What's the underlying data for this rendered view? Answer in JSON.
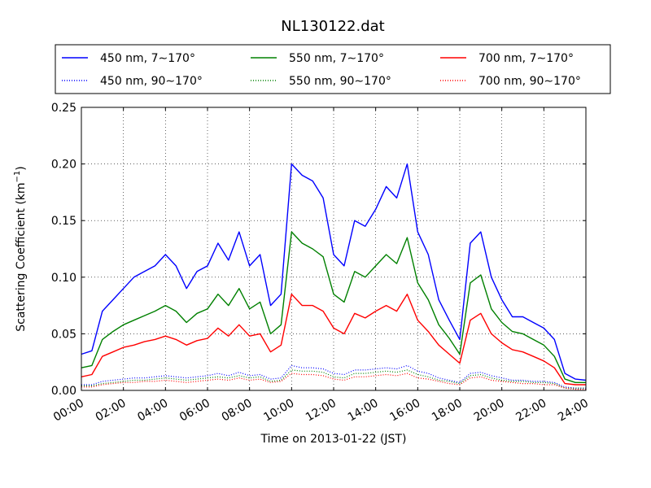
{
  "chart_data": {
    "type": "line",
    "title": "NL130122.dat",
    "xlabel": "Time on 2013-01-22 (JST)",
    "ylabel": "Scattering Coefficient (km",
    "ylabel_sup": "−1",
    "ylabel_close": ")",
    "xlim": [
      "00:00",
      "24:00"
    ],
    "ylim": [
      0,
      0.25
    ],
    "grid": true,
    "legend_position": "top",
    "x_ticks": [
      "00:00",
      "02:00",
      "04:00",
      "06:00",
      "08:00",
      "10:00",
      "12:00",
      "14:00",
      "16:00",
      "18:00",
      "20:00",
      "22:00",
      "24:00"
    ],
    "y_ticks": [
      "0.00",
      "0.05",
      "0.10",
      "0.15",
      "0.20",
      "0.25"
    ],
    "x_hours": [
      0,
      0.5,
      1,
      1.5,
      2,
      2.5,
      3,
      3.5,
      4,
      4.5,
      5,
      5.5,
      6,
      6.5,
      7,
      7.5,
      8,
      8.5,
      9,
      9.5,
      10,
      10.5,
      11,
      11.5,
      12,
      12.5,
      13,
      13.5,
      14,
      14.5,
      15,
      15.5,
      16,
      16.5,
      17,
      17.5,
      18,
      18.5,
      19,
      19.5,
      20,
      20.5,
      21,
      21.5,
      22,
      22.5,
      23,
      23.5,
      24
    ],
    "series": [
      {
        "name": "450 nm, 7∼170°",
        "color": "#0000ff",
        "style": "solid",
        "values": [
          0.032,
          0.035,
          0.07,
          0.08,
          0.09,
          0.1,
          0.105,
          0.11,
          0.12,
          0.11,
          0.09,
          0.105,
          0.11,
          0.13,
          0.115,
          0.14,
          0.11,
          0.12,
          0.075,
          0.085,
          0.2,
          0.19,
          0.185,
          0.17,
          0.12,
          0.11,
          0.15,
          0.145,
          0.16,
          0.18,
          0.17,
          0.2,
          0.14,
          0.12,
          0.08,
          0.062,
          0.045,
          0.13,
          0.14,
          0.1,
          0.08,
          0.065,
          0.065,
          0.06,
          0.055,
          0.045,
          0.015,
          0.01,
          0.009
        ]
      },
      {
        "name": "550 nm, 7∼170°",
        "color": "#008000",
        "style": "solid",
        "values": [
          0.02,
          0.022,
          0.045,
          0.052,
          0.058,
          0.062,
          0.066,
          0.07,
          0.075,
          0.07,
          0.06,
          0.068,
          0.072,
          0.085,
          0.075,
          0.09,
          0.072,
          0.078,
          0.05,
          0.058,
          0.14,
          0.13,
          0.125,
          0.118,
          0.085,
          0.078,
          0.105,
          0.1,
          0.11,
          0.12,
          0.112,
          0.135,
          0.095,
          0.08,
          0.058,
          0.046,
          0.032,
          0.095,
          0.102,
          0.072,
          0.06,
          0.052,
          0.05,
          0.045,
          0.04,
          0.03,
          0.01,
          0.007,
          0.007
        ]
      },
      {
        "name": "700 nm, 7∼170°",
        "color": "#ff0000",
        "style": "solid",
        "values": [
          0.012,
          0.014,
          0.03,
          0.034,
          0.038,
          0.04,
          0.043,
          0.045,
          0.048,
          0.045,
          0.04,
          0.044,
          0.046,
          0.055,
          0.048,
          0.058,
          0.048,
          0.05,
          0.034,
          0.04,
          0.085,
          0.075,
          0.075,
          0.07,
          0.055,
          0.05,
          0.068,
          0.064,
          0.07,
          0.075,
          0.07,
          0.085,
          0.062,
          0.052,
          0.04,
          0.032,
          0.024,
          0.062,
          0.068,
          0.05,
          0.042,
          0.036,
          0.034,
          0.03,
          0.026,
          0.02,
          0.006,
          0.005,
          0.005
        ]
      },
      {
        "name": "450 nm, 90∼170°",
        "color": "#0000ff",
        "style": "dotted",
        "values": [
          0.005,
          0.005,
          0.008,
          0.009,
          0.01,
          0.011,
          0.011,
          0.012,
          0.013,
          0.012,
          0.011,
          0.012,
          0.013,
          0.015,
          0.013,
          0.016,
          0.013,
          0.014,
          0.01,
          0.011,
          0.022,
          0.02,
          0.02,
          0.019,
          0.015,
          0.014,
          0.018,
          0.018,
          0.019,
          0.02,
          0.019,
          0.022,
          0.017,
          0.015,
          0.011,
          0.009,
          0.007,
          0.015,
          0.016,
          0.013,
          0.011,
          0.009,
          0.009,
          0.008,
          0.008,
          0.007,
          0.003,
          0.002,
          0.002
        ]
      },
      {
        "name": "550 nm, 90∼170°",
        "color": "#008000",
        "style": "dotted",
        "values": [
          0.004,
          0.004,
          0.006,
          0.007,
          0.008,
          0.009,
          0.009,
          0.01,
          0.011,
          0.01,
          0.009,
          0.01,
          0.011,
          0.012,
          0.011,
          0.013,
          0.011,
          0.012,
          0.008,
          0.009,
          0.018,
          0.017,
          0.017,
          0.016,
          0.012,
          0.011,
          0.015,
          0.015,
          0.016,
          0.017,
          0.016,
          0.018,
          0.014,
          0.012,
          0.009,
          0.008,
          0.006,
          0.013,
          0.014,
          0.011,
          0.009,
          0.008,
          0.008,
          0.007,
          0.007,
          0.006,
          0.002,
          0.002,
          0.002
        ]
      },
      {
        "name": "700 nm, 90∼170°",
        "color": "#ff0000",
        "style": "dotted",
        "values": [
          0.003,
          0.003,
          0.005,
          0.006,
          0.007,
          0.007,
          0.008,
          0.008,
          0.009,
          0.008,
          0.007,
          0.008,
          0.009,
          0.01,
          0.009,
          0.011,
          0.009,
          0.01,
          0.007,
          0.008,
          0.015,
          0.014,
          0.014,
          0.013,
          0.01,
          0.009,
          0.012,
          0.012,
          0.013,
          0.014,
          0.013,
          0.015,
          0.011,
          0.01,
          0.008,
          0.006,
          0.005,
          0.011,
          0.012,
          0.009,
          0.008,
          0.007,
          0.006,
          0.006,
          0.005,
          0.005,
          0.002,
          0.001,
          0.001
        ]
      }
    ]
  }
}
